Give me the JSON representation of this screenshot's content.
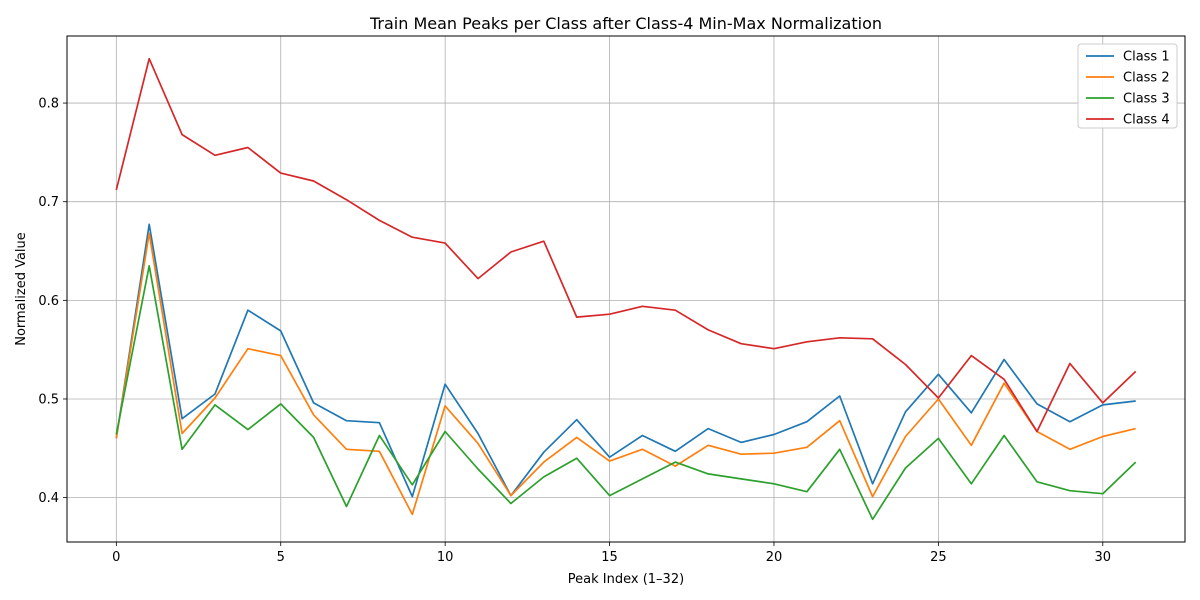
{
  "chart_data": {
    "type": "line",
    "title": "Train Mean Peaks per Class after Class-4 Min-Max Normalization",
    "xlabel": "Peak Index (1–32)",
    "ylabel": "Normalized Value",
    "xlim": [
      -1.5,
      32.5
    ],
    "ylim": [
      0.355,
      0.868
    ],
    "xticks": [
      0,
      5,
      10,
      15,
      20,
      25,
      30
    ],
    "yticks": [
      0.4,
      0.5,
      0.6,
      0.7,
      0.8
    ],
    "grid": true,
    "legend_position": "top-right",
    "x": [
      0,
      1,
      2,
      3,
      4,
      5,
      6,
      7,
      8,
      9,
      10,
      11,
      12,
      13,
      14,
      15,
      16,
      17,
      18,
      19,
      20,
      21,
      22,
      23,
      24,
      25,
      26,
      27,
      28,
      29,
      30,
      31
    ],
    "series": [
      {
        "name": "Class 1",
        "color": "#1f77b4",
        "values": [
          0.46,
          0.677,
          0.48,
          0.505,
          0.59,
          0.569,
          0.496,
          0.478,
          0.476,
          0.401,
          0.515,
          0.465,
          0.402,
          0.446,
          0.479,
          0.441,
          0.463,
          0.447,
          0.47,
          0.456,
          0.464,
          0.477,
          0.503,
          0.414,
          0.487,
          0.525,
          0.486,
          0.54,
          0.495,
          0.477,
          0.494,
          0.498
        ]
      },
      {
        "name": "Class 2",
        "color": "#ff7f0e",
        "values": [
          0.46,
          0.668,
          0.465,
          0.501,
          0.551,
          0.544,
          0.484,
          0.449,
          0.447,
          0.383,
          0.493,
          0.455,
          0.402,
          0.436,
          0.461,
          0.437,
          0.449,
          0.432,
          0.453,
          0.444,
          0.445,
          0.451,
          0.478,
          0.401,
          0.462,
          0.5,
          0.453,
          0.516,
          0.467,
          0.449,
          0.462,
          0.47
        ]
      },
      {
        "name": "Class 3",
        "color": "#2ca02c",
        "values": [
          0.464,
          0.635,
          0.449,
          0.494,
          0.469,
          0.495,
          0.461,
          0.391,
          0.463,
          0.413,
          0.467,
          0.429,
          0.394,
          0.421,
          0.44,
          0.402,
          0.419,
          0.436,
          0.424,
          0.419,
          0.414,
          0.406,
          0.449,
          0.378,
          0.43,
          0.46,
          0.414,
          0.463,
          0.416,
          0.407,
          0.404,
          0.436
        ]
      },
      {
        "name": "Class 4",
        "color": "#d62728",
        "values": [
          0.712,
          0.845,
          0.768,
          0.747,
          0.755,
          0.729,
          0.721,
          0.702,
          0.681,
          0.664,
          0.658,
          0.622,
          0.649,
          0.66,
          0.583,
          0.586,
          0.594,
          0.59,
          0.57,
          0.556,
          0.551,
          0.558,
          0.562,
          0.561,
          0.535,
          0.501,
          0.544,
          0.52,
          0.467,
          0.536,
          0.496,
          0.528
        ]
      }
    ]
  }
}
